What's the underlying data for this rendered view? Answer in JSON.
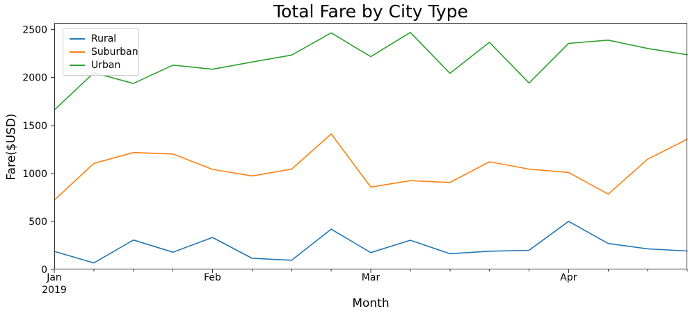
{
  "chart_data": {
    "type": "line",
    "title": "Total Fare by City Type",
    "xlabel": "Month",
    "ylabel": "Fare($USD)",
    "x": [
      "2019-01-06",
      "2019-01-13",
      "2019-01-20",
      "2019-01-27",
      "2019-02-03",
      "2019-02-10",
      "2019-02-17",
      "2019-02-24",
      "2019-03-03",
      "2019-03-10",
      "2019-03-17",
      "2019-03-24",
      "2019-03-31",
      "2019-04-07",
      "2019-04-14",
      "2019-04-21",
      "2019-04-28"
    ],
    "x_major_ticks": [
      {
        "index": 0,
        "label": "Jan",
        "sub_label": "2019"
      },
      {
        "index": 4,
        "label": "Feb"
      },
      {
        "index": 8,
        "label": "Mar"
      },
      {
        "index": 13,
        "label": "Apr"
      }
    ],
    "y_ticks": [
      "0",
      "500",
      "1000",
      "1500",
      "2000",
      "2500"
    ],
    "ylim": [
      0,
      2570
    ],
    "grid": false,
    "legend_position": "upper left",
    "series": [
      {
        "name": "Rural",
        "color": "#1f77b4",
        "values": [
          187.92,
          67.65,
          306.0,
          179.69,
          333.08,
          115.8,
          95.82,
          419.06,
          175.14,
          303.94,
          163.39,
          189.76,
          199.42,
          501.24,
          269.79,
          214.14,
          191.85
        ]
      },
      {
        "name": "Suburban",
        "color": "#ff7f0e",
        "values": [
          721.6,
          1105.13,
          1218.2,
          1203.28,
          1042.79,
          974.34,
          1045.5,
          1412.74,
          858.46,
          925.27,
          906.2,
          1122.2,
          1045.06,
          1010.73,
          784.82,
          1149.27,
          1357.75
        ]
      },
      {
        "name": "Urban",
        "color": "#2ca02c",
        "values": [
          1661.68,
          2050.43,
          1939.02,
          2129.51,
          2086.94,
          2162.64,
          2235.07,
          2466.29,
          2218.2,
          2470.93,
          2044.42,
          2368.37,
          1942.77,
          2356.7,
          2390.72,
          2303.8,
          2238.29
        ]
      }
    ]
  }
}
